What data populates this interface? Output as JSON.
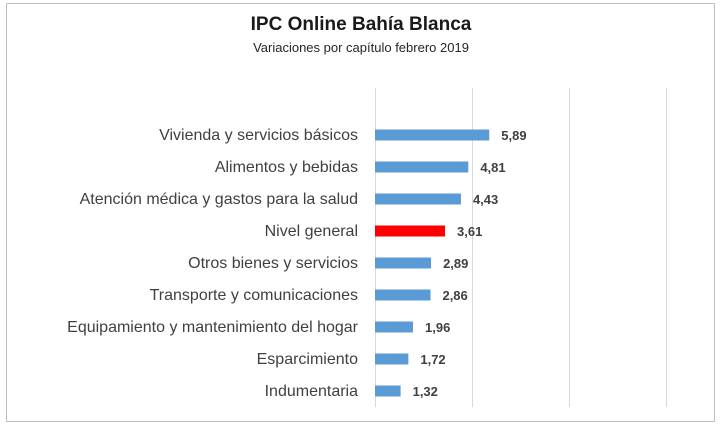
{
  "chart_data": {
    "type": "bar",
    "orientation": "horizontal",
    "title": "IPC Online Bahía Blanca",
    "subtitle": "Variaciones por capítulo febrero 2019",
    "xlabel": "",
    "ylabel": "",
    "xlim": [
      0,
      20
    ],
    "grid": true,
    "categories": [
      "Vivienda y servicios básicos",
      "Alimentos y bebidas",
      "Atención médica y gastos para la salud",
      "Nivel general",
      "Otros bienes y servicios",
      "Transporte y comunicaciones",
      "Equipamiento y mantenimiento del hogar",
      "Esparcimiento",
      "Indumentaria"
    ],
    "values": [
      5.89,
      4.81,
      4.43,
      3.61,
      2.89,
      2.86,
      1.96,
      1.72,
      1.32
    ],
    "value_labels": [
      "5,89",
      "4,81",
      "4,43",
      "3,61",
      "2,89",
      "2,86",
      "1,96",
      "1,72",
      "1,32"
    ],
    "colors": {
      "default": "#5b9bd5",
      "highlight": "#ff0000",
      "highlight_category": "Nivel general",
      "grid": "#d9d9d9"
    }
  }
}
